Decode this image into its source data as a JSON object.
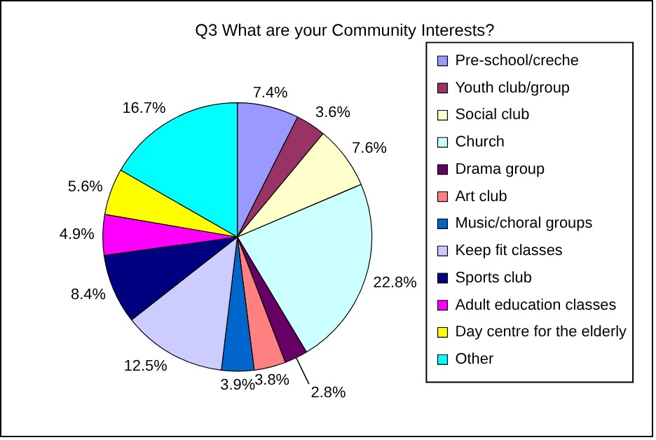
{
  "chart_data": {
    "type": "pie",
    "title": "Q3 What are your Community Interests?",
    "categories": [
      "Pre-school/creche",
      "Youth club/group",
      "Social club",
      "Church",
      "Drama group",
      "Art club",
      "Music/choral groups",
      "Keep fit classes",
      "Sports club",
      "Adult education classes",
      "Day centre for the elderly",
      "Other"
    ],
    "values": [
      7.4,
      3.6,
      7.6,
      22.8,
      2.8,
      3.8,
      3.9,
      12.5,
      8.4,
      4.9,
      5.6,
      16.7
    ],
    "value_labels": [
      "7.4%",
      "3.6%",
      "7.6%",
      "22.8%",
      "2.8%",
      "3.8%",
      "3.9%",
      "12.5%",
      "8.4%",
      "4.9%",
      "5.6%",
      "16.7%"
    ],
    "colors": [
      "#9999ff",
      "#993366",
      "#ffffcc",
      "#ccffff",
      "#660066",
      "#ff8080",
      "#0066cc",
      "#ccccff",
      "#000080",
      "#ff00ff",
      "#ffff00",
      "#00ffff"
    ],
    "legend": "right"
  }
}
